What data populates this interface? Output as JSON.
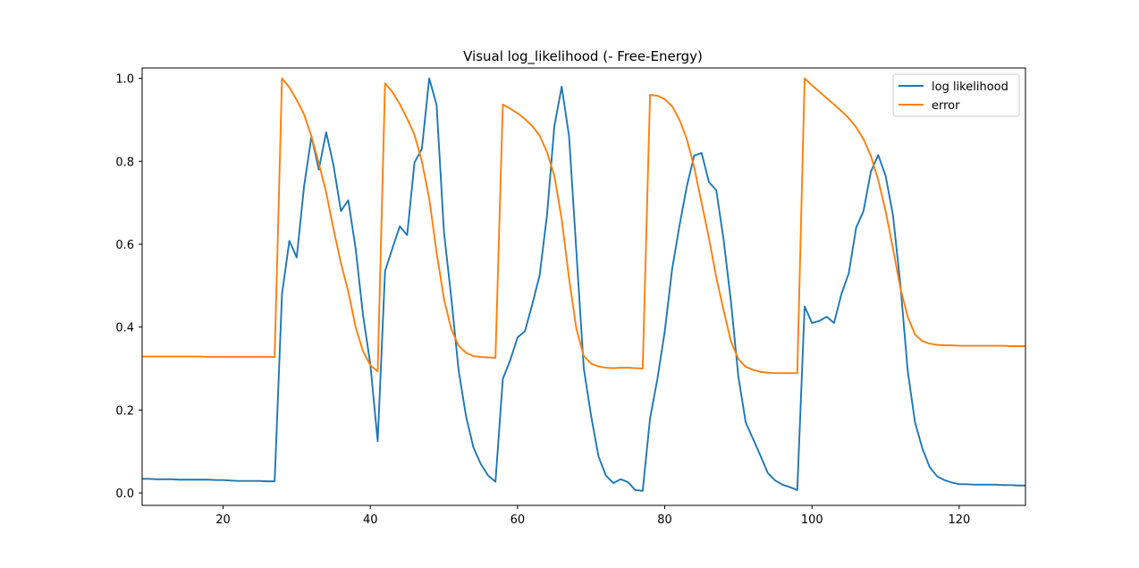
{
  "chart_data": {
    "type": "line",
    "title": "Visual log_likelihood (- Free-Energy)",
    "xlabel": "",
    "ylabel": "",
    "xlim": [
      9,
      129
    ],
    "ylim": [
      -0.03,
      1.025
    ],
    "xticks": [
      20,
      40,
      60,
      80,
      100,
      120
    ],
    "yticks": [
      0.0,
      0.2,
      0.4,
      0.6,
      0.8,
      1.0
    ],
    "x_tick_labels": [
      "20",
      "40",
      "60",
      "80",
      "100",
      "120"
    ],
    "y_tick_labels": [
      "0.0",
      "0.2",
      "0.4",
      "0.6",
      "0.8",
      "1.0"
    ],
    "grid": false,
    "legend_position": "top-right",
    "series": [
      {
        "name": "log likelihood",
        "color": "#1f77b4",
        "x": [
          9,
          10,
          11,
          12,
          13,
          14,
          15,
          16,
          17,
          18,
          19,
          20,
          21,
          22,
          23,
          24,
          25,
          26,
          27,
          28,
          29,
          30,
          31,
          32,
          33,
          34,
          35,
          36,
          37,
          38,
          39,
          40,
          41,
          42,
          43,
          44,
          45,
          46,
          47,
          48,
          49,
          50,
          51,
          52,
          53,
          54,
          55,
          56,
          57,
          58,
          59,
          60,
          61,
          62,
          63,
          64,
          65,
          66,
          67,
          68,
          69,
          70,
          71,
          72,
          73,
          74,
          75,
          76,
          77,
          78,
          79,
          80,
          81,
          82,
          83,
          84,
          85,
          86,
          87,
          88,
          89,
          90,
          91,
          92,
          93,
          94,
          95,
          96,
          97,
          98,
          99,
          100,
          101,
          102,
          103,
          104,
          105,
          106,
          107,
          108,
          109,
          110,
          111,
          112,
          113,
          114,
          115,
          116,
          117,
          118,
          119,
          120,
          121,
          122,
          123,
          124,
          125,
          126,
          127,
          128,
          129
        ],
        "y": [
          0.034,
          0.034,
          0.033,
          0.033,
          0.033,
          0.032,
          0.032,
          0.032,
          0.032,
          0.032,
          0.031,
          0.031,
          0.03,
          0.029,
          0.029,
          0.029,
          0.029,
          0.028,
          0.028,
          0.48,
          0.608,
          0.568,
          0.74,
          0.86,
          0.78,
          0.87,
          0.79,
          0.68,
          0.706,
          0.59,
          0.43,
          0.31,
          0.125,
          0.535,
          0.59,
          0.643,
          0.622,
          0.797,
          0.83,
          1.0,
          0.936,
          0.63,
          0.47,
          0.295,
          0.185,
          0.11,
          0.07,
          0.042,
          0.027,
          0.275,
          0.32,
          0.375,
          0.39,
          0.455,
          0.525,
          0.67,
          0.885,
          0.98,
          0.86,
          0.58,
          0.3,
          0.185,
          0.088,
          0.042,
          0.024,
          0.033,
          0.026,
          0.007,
          0.005,
          0.18,
          0.275,
          0.39,
          0.54,
          0.645,
          0.74,
          0.814,
          0.82,
          0.75,
          0.73,
          0.61,
          0.46,
          0.28,
          0.17,
          0.13,
          0.09,
          0.048,
          0.03,
          0.02,
          0.014,
          0.007,
          0.45,
          0.41,
          0.415,
          0.425,
          0.41,
          0.48,
          0.53,
          0.64,
          0.68,
          0.775,
          0.815,
          0.765,
          0.67,
          0.505,
          0.295,
          0.17,
          0.107,
          0.062,
          0.04,
          0.031,
          0.025,
          0.021,
          0.021,
          0.02,
          0.02,
          0.02,
          0.02,
          0.019,
          0.019,
          0.018,
          0.018
        ]
      },
      {
        "name": "error",
        "color": "#ff7f0e",
        "x": [
          9,
          10,
          11,
          12,
          13,
          14,
          15,
          16,
          17,
          18,
          19,
          20,
          21,
          22,
          23,
          24,
          25,
          26,
          27,
          28,
          29,
          30,
          31,
          32,
          33,
          34,
          35,
          36,
          37,
          38,
          39,
          40,
          41,
          42,
          43,
          44,
          45,
          46,
          47,
          48,
          49,
          50,
          51,
          52,
          53,
          54,
          55,
          56,
          57,
          58,
          59,
          60,
          61,
          62,
          63,
          64,
          65,
          66,
          67,
          68,
          69,
          70,
          71,
          72,
          73,
          74,
          75,
          76,
          77,
          78,
          79,
          80,
          81,
          82,
          83,
          84,
          85,
          86,
          87,
          88,
          89,
          90,
          91,
          92,
          93,
          94,
          95,
          96,
          97,
          98,
          99,
          100,
          101,
          102,
          103,
          104,
          105,
          106,
          107,
          108,
          109,
          110,
          111,
          112,
          113,
          114,
          115,
          116,
          117,
          118,
          119,
          120,
          121,
          122,
          123,
          124,
          125,
          126,
          127,
          128,
          129
        ],
        "y": [
          0.329,
          0.329,
          0.329,
          0.329,
          0.329,
          0.329,
          0.329,
          0.329,
          0.329,
          0.328,
          0.328,
          0.328,
          0.328,
          0.328,
          0.328,
          0.328,
          0.328,
          0.328,
          0.328,
          1.0,
          0.978,
          0.948,
          0.913,
          0.86,
          0.795,
          0.725,
          0.636,
          0.555,
          0.486,
          0.4,
          0.342,
          0.308,
          0.293,
          0.988,
          0.967,
          0.938,
          0.903,
          0.864,
          0.8,
          0.71,
          0.58,
          0.468,
          0.395,
          0.355,
          0.338,
          0.33,
          0.328,
          0.327,
          0.326,
          0.937,
          0.927,
          0.916,
          0.902,
          0.885,
          0.862,
          0.822,
          0.765,
          0.66,
          0.517,
          0.395,
          0.33,
          0.312,
          0.305,
          0.302,
          0.301,
          0.302,
          0.302,
          0.301,
          0.3,
          0.96,
          0.958,
          0.95,
          0.933,
          0.9,
          0.853,
          0.785,
          0.7,
          0.615,
          0.52,
          0.44,
          0.365,
          0.323,
          0.304,
          0.297,
          0.292,
          0.29,
          0.289,
          0.289,
          0.289,
          0.289,
          1.0,
          0.983,
          0.968,
          0.952,
          0.937,
          0.921,
          0.904,
          0.882,
          0.853,
          0.813,
          0.755,
          0.68,
          0.59,
          0.495,
          0.425,
          0.382,
          0.366,
          0.36,
          0.357,
          0.356,
          0.356,
          0.355,
          0.355,
          0.355,
          0.355,
          0.355,
          0.355,
          0.355,
          0.354,
          0.354,
          0.354
        ]
      }
    ]
  }
}
